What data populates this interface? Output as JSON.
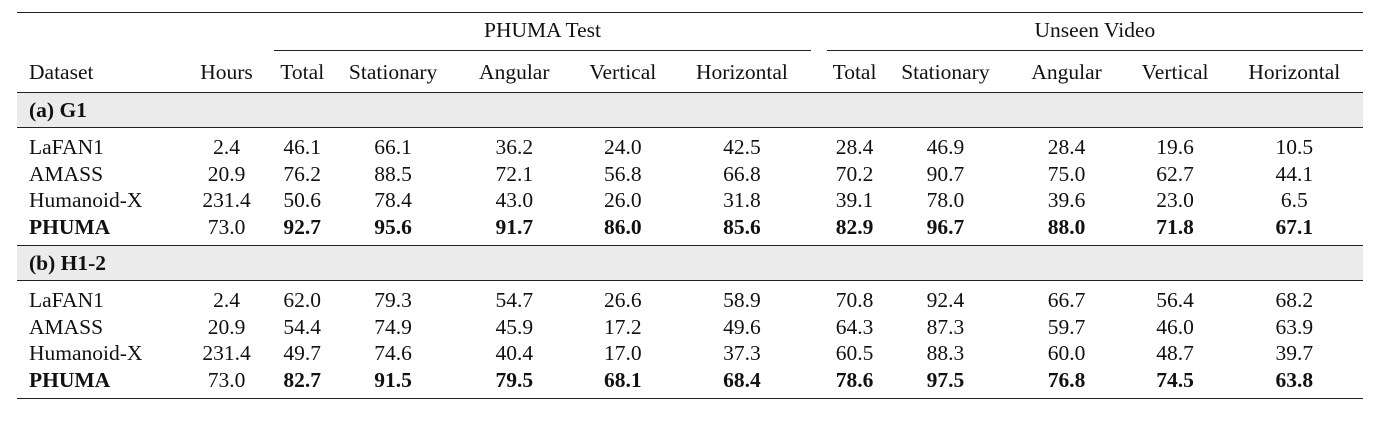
{
  "table": {
    "group_headers": [
      "PHUMA Test",
      "Unseen Video"
    ],
    "columns": [
      "Dataset",
      "Hours",
      "Total",
      "Stationary",
      "Angular",
      "Vertical",
      "Horizontal",
      "Total",
      "Stationary",
      "Angular",
      "Vertical",
      "Horizontal"
    ],
    "sections": [
      {
        "title": "(a) G1",
        "rows": [
          [
            "LaFAN1",
            "2.4",
            "46.1",
            "66.1",
            "36.2",
            "24.0",
            "42.5",
            "28.4",
            "46.9",
            "28.4",
            "19.6",
            "10.5"
          ],
          [
            "AMASS",
            "20.9",
            "76.2",
            "88.5",
            "72.1",
            "56.8",
            "66.8",
            "70.2",
            "90.7",
            "75.0",
            "62.7",
            "44.1"
          ],
          [
            "Humanoid-X",
            "231.4",
            "50.6",
            "78.4",
            "43.0",
            "26.0",
            "31.8",
            "39.1",
            "78.0",
            "39.6",
            "23.0",
            "6.5"
          ],
          [
            "PHUMA",
            "73.0",
            "92.7",
            "95.6",
            "91.7",
            "86.0",
            "85.6",
            "82.9",
            "96.7",
            "88.0",
            "71.8",
            "67.1"
          ]
        ]
      },
      {
        "title": "(b) H1-2",
        "rows": [
          [
            "LaFAN1",
            "2.4",
            "62.0",
            "79.3",
            "54.7",
            "26.6",
            "58.9",
            "70.8",
            "92.4",
            "66.7",
            "56.4",
            "68.2"
          ],
          [
            "AMASS",
            "20.9",
            "54.4",
            "74.9",
            "45.9",
            "17.2",
            "49.6",
            "64.3",
            "87.3",
            "59.7",
            "46.0",
            "63.9"
          ],
          [
            "Humanoid-X",
            "231.4",
            "49.7",
            "74.6",
            "40.4",
            "17.0",
            "37.3",
            "60.5",
            "88.3",
            "60.0",
            "48.7",
            "39.7"
          ],
          [
            "PHUMA",
            "73.0",
            "82.7",
            "91.5",
            "79.5",
            "68.1",
            "68.4",
            "78.6",
            "97.5",
            "76.8",
            "74.5",
            "63.8"
          ]
        ]
      }
    ]
  }
}
